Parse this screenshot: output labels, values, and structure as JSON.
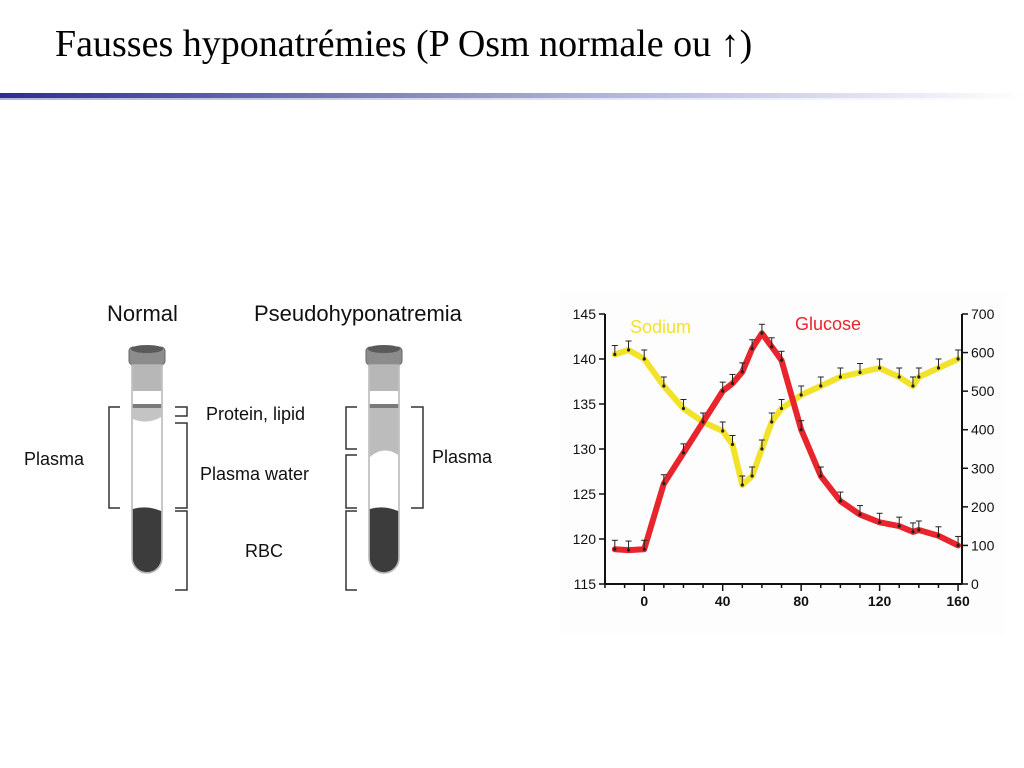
{
  "slide": {
    "title": "Fausses hyponatrémies (P Osm normale ou ↑)"
  },
  "tube_diagram": {
    "normal_label": "Normal",
    "pseudo_label": "Pseudohyponatremia",
    "protein_lipid_label": "Protein, lipid",
    "plasma_water_label": "Plasma water",
    "rbc_label": "RBC",
    "plasma_left_label": "Plasma",
    "plasma_right_label": "Plasma"
  },
  "chart_data": {
    "type": "line",
    "x": [
      -15,
      -8,
      0,
      10,
      20,
      30,
      40,
      45,
      50,
      55,
      60,
      65,
      70,
      80,
      90,
      100,
      110,
      120,
      130,
      137,
      140,
      150,
      160
    ],
    "xlim": [
      -20,
      162
    ],
    "xticks": [
      "0",
      "40",
      "80",
      "120",
      "160"
    ],
    "left_axis": {
      "ylim": [
        115,
        145
      ],
      "ticks": [
        "115",
        "120",
        "125",
        "130",
        "135",
        "140",
        "145"
      ]
    },
    "right_axis": {
      "ylim": [
        0,
        700
      ],
      "ticks": [
        "0",
        "100",
        "200",
        "300",
        "400",
        "500",
        "600",
        "700"
      ]
    },
    "series": [
      {
        "name": "Sodium",
        "axis": "left",
        "color": "#f2e22a",
        "values": [
          140.5,
          141,
          140,
          137,
          134.5,
          133,
          132,
          130.5,
          126,
          127,
          130,
          133,
          134.5,
          136,
          137,
          138,
          138.5,
          139,
          138,
          137,
          138,
          139,
          140
        ]
      },
      {
        "name": "Glucose",
        "axis": "right",
        "color": "#e8252c",
        "values": [
          90,
          88,
          90,
          260,
          340,
          420,
          500,
          520,
          550,
          610,
          650,
          615,
          580,
          400,
          280,
          215,
          180,
          160,
          150,
          135,
          140,
          125,
          100
        ]
      }
    ]
  }
}
